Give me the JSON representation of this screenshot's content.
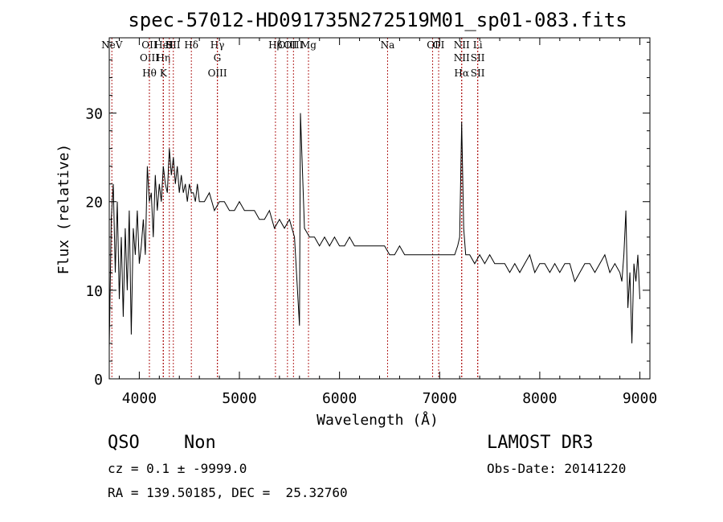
{
  "chart_data": {
    "type": "line",
    "title": "spec-57012-HD091735N272519M01_sp01-083.fits",
    "xlabel": "Wavelength (Å)",
    "ylabel": "Flux (relative)",
    "xlim": [
      3700,
      9100
    ],
    "ylim": [
      0,
      38.5
    ],
    "xticks": [
      4000,
      5000,
      6000,
      7000,
      8000,
      9000
    ],
    "yticks": [
      0,
      10,
      20,
      30
    ],
    "grid": false,
    "series": [
      {
        "name": "flux",
        "x": [
          3700,
          3720,
          3740,
          3760,
          3780,
          3800,
          3820,
          3840,
          3860,
          3880,
          3900,
          3920,
          3940,
          3960,
          3980,
          4000,
          4020,
          4040,
          4060,
          4080,
          4100,
          4120,
          4140,
          4160,
          4180,
          4200,
          4220,
          4240,
          4260,
          4280,
          4300,
          4320,
          4340,
          4360,
          4380,
          4400,
          4420,
          4440,
          4460,
          4480,
          4500,
          4520,
          4540,
          4560,
          4580,
          4600,
          4650,
          4700,
          4750,
          4800,
          4850,
          4900,
          4950,
          5000,
          5050,
          5100,
          5150,
          5200,
          5250,
          5300,
          5350,
          5400,
          5450,
          5500,
          5550,
          5600,
          5610,
          5650,
          5700,
          5750,
          5800,
          5850,
          5900,
          5950,
          6000,
          6050,
          6100,
          6150,
          6200,
          6250,
          6300,
          6350,
          6400,
          6450,
          6500,
          6550,
          6600,
          6650,
          6700,
          6750,
          6800,
          6850,
          6900,
          6950,
          7000,
          7050,
          7100,
          7150,
          7180,
          7200,
          7220,
          7240,
          7260,
          7300,
          7350,
          7400,
          7450,
          7500,
          7550,
          7600,
          7650,
          7700,
          7750,
          7800,
          7850,
          7900,
          7950,
          8000,
          8050,
          8100,
          8150,
          8200,
          8250,
          8300,
          8350,
          8400,
          8450,
          8500,
          8550,
          8600,
          8650,
          8700,
          8750,
          8800,
          8820,
          8840,
          8860,
          8880,
          8900,
          8920,
          8940,
          8960,
          8980,
          9000
        ],
        "values": [
          3.5,
          18,
          22,
          12,
          20,
          9,
          16,
          7,
          17,
          10,
          19,
          5,
          17,
          14,
          19,
          13,
          15,
          18,
          14,
          24,
          20,
          21,
          16,
          23,
          19,
          22,
          20,
          24,
          22,
          21,
          26,
          23,
          25,
          22,
          24,
          21,
          23,
          21,
          22,
          20,
          22,
          21,
          21,
          20,
          22,
          20,
          20,
          21,
          19,
          20,
          20,
          19,
          19,
          20,
          19,
          19,
          19,
          18,
          18,
          19,
          17,
          18,
          17,
          18,
          16,
          6,
          30,
          17,
          16,
          16,
          15,
          16,
          15,
          16,
          15,
          15,
          16,
          15,
          15,
          15,
          15,
          15,
          15,
          15,
          14,
          14,
          15,
          14,
          14,
          14,
          14,
          14,
          14,
          14,
          14,
          14,
          14,
          14,
          15,
          16,
          29,
          17,
          14,
          14,
          13,
          14,
          13,
          14,
          13,
          13,
          13,
          12,
          13,
          12,
          13,
          14,
          12,
          13,
          13,
          12,
          13,
          12,
          13,
          13,
          11,
          12,
          13,
          13,
          12,
          13,
          14,
          12,
          13,
          12,
          11,
          14,
          19,
          8,
          12,
          4,
          13,
          11,
          14,
          9
        ]
      }
    ],
    "emission_lines": [
      {
        "label": "NeV",
        "wavelength": 3726
      },
      {
        "label": "OII",
        "wavelength": 4101
      },
      {
        "label": "OIII",
        "wavelength": 4101
      },
      {
        "label": "Hθ",
        "wavelength": 4101
      },
      {
        "label": "HeI",
        "wavelength": 4240
      },
      {
        "label": "Hη",
        "wavelength": 4240
      },
      {
        "label": "H",
        "wavelength": 4300
      },
      {
        "label": "K",
        "wavelength": 4240
      },
      {
        "label": "SII",
        "wavelength": 4340
      },
      {
        "label": "Hδ",
        "wavelength": 4520
      },
      {
        "label": "Hγ",
        "wavelength": 4780
      },
      {
        "label": "G",
        "wavelength": 4780
      },
      {
        "label": "OIII",
        "wavelength": 4780
      },
      {
        "label": "OIII",
        "wavelength": 5480
      },
      {
        "label": "Hβ",
        "wavelength": 5360
      },
      {
        "label": "OIII",
        "wavelength": 5540
      },
      {
        "label": "Mg",
        "wavelength": 5690
      },
      {
        "label": "Na",
        "wavelength": 6480
      },
      {
        "label": "OI",
        "wavelength": 6990
      },
      {
        "label": "OI",
        "wavelength": 6930
      },
      {
        "label": "NII",
        "wavelength": 7220
      },
      {
        "label": "NII",
        "wavelength": 7220
      },
      {
        "label": "Hα",
        "wavelength": 7220
      },
      {
        "label": "Li",
        "wavelength": 7380
      },
      {
        "label": "SII",
        "wavelength": 7380
      },
      {
        "label": "SII",
        "wavelength": 7380
      }
    ]
  },
  "info": {
    "class": "QSO",
    "subclass": "Non",
    "survey": "LAMOST DR3",
    "cz": "cz = 0.1 ± -9999.0",
    "obs_date": "Obs-Date: 20141220",
    "coords": "RA = 139.50185, DEC =  25.32760"
  },
  "colors": {
    "line": "#000000",
    "marker": "#b22222"
  }
}
